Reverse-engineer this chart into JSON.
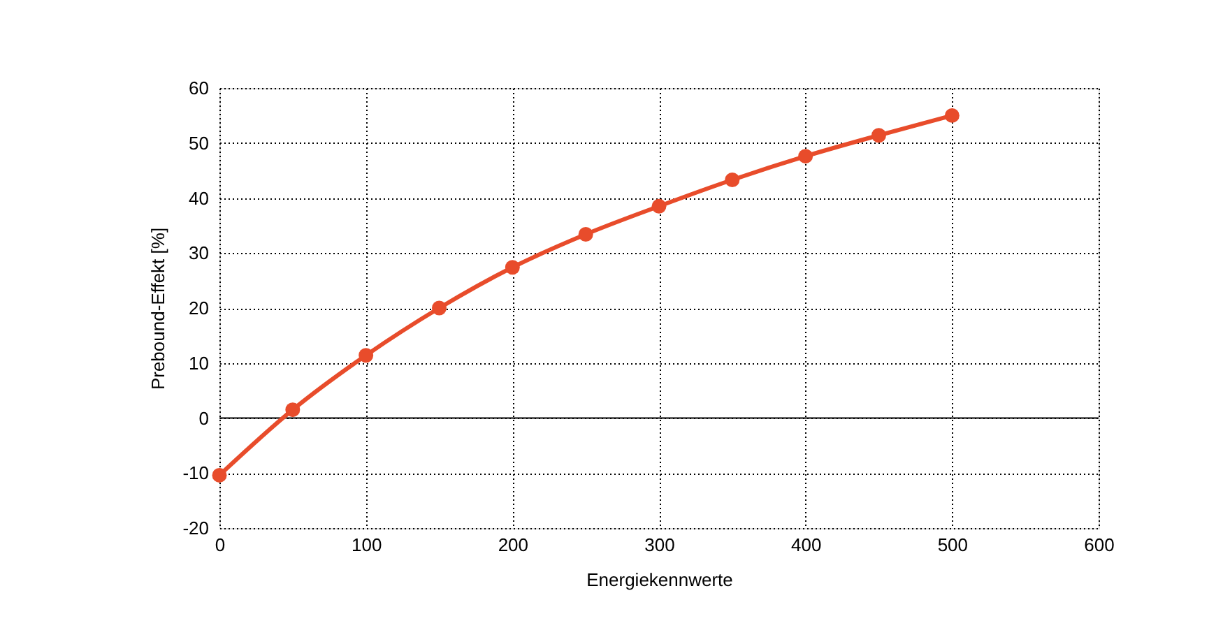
{
  "chart_data": {
    "type": "line",
    "xlabel": "Energiekennwerte",
    "ylabel": "Prebound-Effekt [%]",
    "x": [
      0,
      50,
      100,
      150,
      200,
      250,
      300,
      350,
      400,
      450,
      500
    ],
    "series": [
      {
        "color": "#e84c2b",
        "values": [
          -10.4,
          1.5,
          11.4,
          20,
          27.4,
          33.4,
          38.5,
          43.3,
          47.6,
          51.4,
          55
        ]
      }
    ],
    "xlim": [
      0,
      600
    ],
    "xticks": [
      0,
      100,
      200,
      300,
      400,
      500,
      600
    ],
    "ylim": [
      -20,
      60
    ],
    "yticks": [
      -20,
      -10,
      0,
      10,
      20,
      30,
      40,
      50,
      60
    ],
    "grid": true,
    "marker": "circle",
    "line_style": "solid",
    "ref_lines": [
      {
        "axis": "y",
        "value": 0,
        "color": "#000000",
        "line_style": "solid"
      }
    ]
  }
}
